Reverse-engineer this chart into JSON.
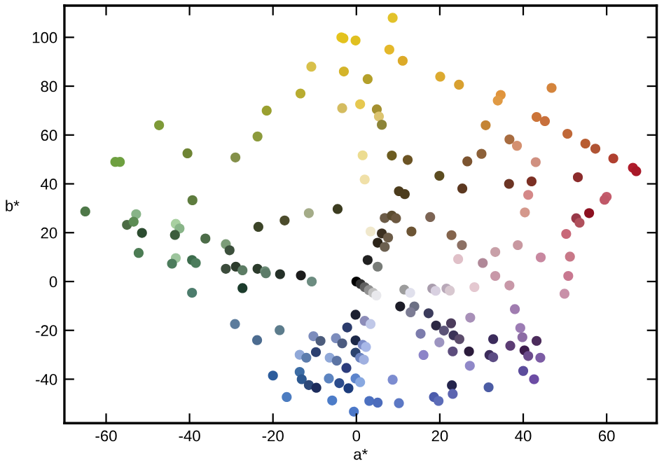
{
  "chart_data": {
    "type": "scatter",
    "xlabel": "a*",
    "ylabel": "b*",
    "xlim": [
      -70,
      72
    ],
    "ylim": [
      -58,
      113
    ],
    "xticks": [
      -60,
      -40,
      -20,
      0,
      20,
      40,
      60
    ],
    "yticks": [
      -40,
      -20,
      0,
      20,
      40,
      60,
      80,
      100
    ],
    "grid": false,
    "legend": false,
    "marker": "circle",
    "series": [
      {
        "x": [
          -3.6,
          -3.1,
          -0.2,
          -10.8,
          -3,
          -13.4,
          -3.4,
          0.9,
          -21.5,
          -47.3,
          -23.7,
          -40.5,
          -29,
          -57.8,
          -56.7,
          1.5,
          2,
          -39.3,
          -65,
          -52.8,
          -11.4,
          -4.5,
          -17.2,
          8.7,
          7.9,
          11.1,
          2.7,
          20.1,
          24.6,
          34.6,
          33.9,
          46.8,
          4.9,
          5.4,
          6.1,
          31,
          43.2,
          45.2,
          50.6,
          54.9,
          57.3,
          36.7,
          38.5,
          61.6,
          66.3,
          67.1,
          8.5,
          12.3,
          26.6,
          30,
          43,
          19.9,
          10.2,
          11.6,
          25.4,
          36.6,
          42,
          53.1,
          41.2,
          60,
          59.5,
          6.8,
          8.5,
          9.5,
          17.7,
          40.4,
          52.7,
          53.5,
          55.8,
          28.3,
          36.7,
          33.3,
          30.3,
          33.3,
          38.7,
          44.2,
          24.4,
          25.3,
          22.8,
          13.2,
          3.4,
          6.1,
          7.6,
          5.1,
          6.8,
          2.7,
          5.1,
          50.3,
          51.2,
          50.8,
          49.9,
          -55,
          -53.4,
          -51.4,
          -52.2,
          -43.3,
          -42.4,
          -43.5,
          -36.2,
          -31.3,
          -30.4,
          -23.5,
          -43.3,
          -44.2,
          -39.4,
          -38.5,
          -39.4,
          -31.3,
          -28.9,
          -27.3,
          -27.3,
          -23.7,
          -21.9,
          -21.7,
          -18.3,
          -13.3,
          -10.7,
          0,
          1,
          2,
          3,
          4,
          4.8,
          -29.1,
          -23.8,
          -18.4,
          -10.3,
          -8.6,
          -4.9,
          -3.4,
          -0.2,
          -2.2,
          -0.2,
          -0.2,
          -9.7,
          -13.6,
          -12,
          -6.4,
          -4.7,
          -2.4,
          -13.6,
          -20,
          -6.6,
          -13.1,
          -11.4,
          -9.6,
          -4.1,
          -1.9,
          -0.2,
          0.9,
          -16.7,
          -5.8,
          -0.6,
          2,
          3.4,
          1.5,
          2.3,
          0.9,
          1.8,
          3.1,
          5.1,
          10.2,
          8.7,
          10.5,
          11.5,
          12.9,
          13.9,
          13,
          15.4,
          16.1,
          17.3,
          18.2,
          19,
          21.6,
          22.4,
          19.1,
          21,
          22.7,
          23.3,
          24.7,
          19.9,
          23.1,
          27,
          27.3,
          27.2,
          22.9,
          23.1,
          18.6,
          19.7,
          31.7,
          31.9,
          32.8,
          32.8,
          36.9,
          38,
          39.3,
          39.8,
          40.3,
          41.2,
          43.2,
          44.1,
          40,
          42.6
        ],
        "values": [
          100,
          99.6,
          98.7,
          88,
          86,
          77,
          71,
          72.6,
          70,
          64,
          59.4,
          52.5,
          50.8,
          49,
          49,
          51.7,
          41.8,
          33.3,
          28.7,
          27.6,
          28,
          29.7,
          25,
          108,
          95,
          90.4,
          82.9,
          83.9,
          80.6,
          76.4,
          74.1,
          79.3,
          70.5,
          67.6,
          64.2,
          64,
          67.4,
          65.7,
          60.5,
          56.5,
          54.4,
          58.2,
          55.6,
          50.4,
          46.6,
          45.2,
          51.6,
          49.8,
          49.2,
          52.3,
          48.9,
          43.3,
          37,
          35.8,
          38.1,
          40,
          41,
          42.7,
          35.5,
          34.7,
          33.5,
          26,
          27,
          25.9,
          26.4,
          28.3,
          25.9,
          24.1,
          28,
          -2.3,
          -1.6,
          2.3,
          7.6,
          12.1,
          14.9,
          9.9,
          9.2,
          14.9,
          19,
          20.5,
          20.5,
          19.7,
          18,
          15.9,
          14.2,
          8.8,
          6.1,
          19.5,
          10.2,
          2.3,
          -5,
          23.2,
          24.5,
          19.9,
          11.7,
          23.6,
          21.7,
          19.1,
          17.6,
          15.3,
          12.8,
          22.4,
          9.6,
          7.3,
          8.8,
          7.6,
          -4.6,
          5.2,
          6.1,
          4.6,
          -2.7,
          5.2,
          4.2,
          3.4,
          3,
          2.5,
          0,
          0,
          -1,
          -2.3,
          -3.5,
          -4.6,
          -5.7,
          -17.4,
          -24,
          -19.9,
          -22.4,
          -24.3,
          -23.2,
          -25.3,
          -13.6,
          -18.8,
          -24.1,
          -29.1,
          -28.9,
          -30,
          -31.2,
          -31.2,
          -32.4,
          -35.4,
          -37,
          -38.5,
          -39.7,
          -40,
          -42.4,
          -43.5,
          -41.6,
          -43.7,
          -39.7,
          -41.2,
          -47.3,
          -48.7,
          -53.3,
          -16.1,
          -17.4,
          -25.9,
          -26.8,
          -31.2,
          -32,
          -48.9,
          -49.6,
          -49.8,
          -40.2,
          -10.2,
          -3.3,
          -4.6,
          -10.2,
          -12.6,
          -21.4,
          -30.1,
          -13,
          -2.9,
          -3.8,
          -2.9,
          -3.7,
          -18,
          -20.1,
          -17.1,
          -22,
          -23.6,
          -24.9,
          -28.6,
          -28.6,
          -14.8,
          -34.5,
          -42.5,
          -46,
          -47.3,
          -48.9,
          -43.3,
          -30.1,
          -31,
          -23.6,
          -26.3,
          -11.3,
          -19,
          -22.8,
          -28.2,
          -30.5,
          -24.3,
          -31.2,
          -36.6,
          -40
        ],
        "colors": [
          "#e6c41c",
          "#e3c21e",
          "#e0c020",
          "#d8c04a",
          "#d4b42a",
          "#b8ac30",
          "#d4bc60",
          "#e6c850",
          "#9aa030",
          "#7e9a38",
          "#8c9a3c",
          "#6e8434",
          "#84904a",
          "#6ea040",
          "#6ea040",
          "#ecdc90",
          "#f0e0a8",
          "#5e7c3e",
          "#4e7848",
          "#88b488",
          "#a4ac88",
          "#3c3c20",
          "#4c4c2c",
          "#e2c22a",
          "#e4b82a",
          "#dcaa28",
          "#b4a02a",
          "#dcaa30",
          "#d8a030",
          "#e0943c",
          "#e09a44",
          "#d4843c",
          "#a49030",
          "#dcc470",
          "#8c8438",
          "#c48434",
          "#cc7438",
          "#c8703c",
          "#c06838",
          "#b85c30",
          "#b05434",
          "#a86c40",
          "#d49070",
          "#b04030",
          "#b01c2c",
          "#a81828",
          "#6c5c20",
          "#6c5424",
          "#7c5430",
          "#8c6038",
          "#d09080",
          "#5c4c20",
          "#4c3c1c",
          "#4c3c1c",
          "#5c3820",
          "#6c3424",
          "#7c3024",
          "#8c2c2c",
          "#d48888",
          "#c45c6c",
          "#c05868",
          "#6c5c48",
          "#5c4c30",
          "#6c5840",
          "#7c6454",
          "#d4988c",
          "#983848",
          "#b0505c",
          "#8c1020",
          "#e4c8d0",
          "#c898a8",
          "#c898a8",
          "#b08898",
          "#c8a0a8",
          "#c898a0",
          "#c888a0",
          "#e0c0c8",
          "#8c7064",
          "#84644c",
          "#6c5434",
          "#f0e8cc",
          "#3c3020",
          "#6c5c48",
          "#2c2418",
          "#6c6050",
          "#202020",
          "#787c78",
          "#c86878",
          "#c87888",
          "#c87890",
          "#c890a8",
          "#4c6c44",
          "#5c8c54",
          "#2c4c30",
          "#4c7c54",
          "#a8d0a0",
          "#88b488",
          "#3c5c3c",
          "#4c6c48",
          "#7c9c78",
          "#3c503c",
          "#3c4428",
          "#9cc49c",
          "#4c7c5c",
          "#3c6c4c",
          "#4c7c5c",
          "#4c7c6c",
          "#3c4c3c",
          "#2c3c2c",
          "#5c7c64",
          "#1c3c2c",
          "#2c3c2c",
          "#6c8c78",
          "#5c7c68",
          "#243028",
          "#1c1c1c",
          "#6c8c80",
          "#000000",
          "#303030",
          "#606060",
          "#909090",
          "#c0c0c0",
          "#e8e8ec",
          "#5c7c9c",
          "#4c6c90",
          "#5c7c8c",
          "#7c8cbc",
          "#4c5c7c",
          "#7c8cbc",
          "#4c5c80",
          "#1c2030",
          "#2c3c6c",
          "#1c2848",
          "#2c4470",
          "#2c4070",
          "#90a8d8",
          "#5c7cac",
          "#90a8d8",
          "#5c74a4",
          "#2c3c7c",
          "#3c6ca4",
          "#2c5c9c",
          "#5c84c0",
          "#2c5890",
          "#2c4878",
          "#1c2c5c",
          "#2c4c8c",
          "#1c3c7c",
          "#5c84cc",
          "#88a8e0",
          "#4c7cc0",
          "#4c7cc8",
          "#4c78c8",
          "#8c8cb8",
          "#c0c8e8",
          "#7c8cc8",
          "#a8b8e8",
          "#6c84c0",
          "#a0b0e0",
          "#4c70c0",
          "#4c6cbc",
          "#5c78c4",
          "#7c8cd0",
          "#1c1c28",
          "#9c9c9c",
          "#e0e0ec",
          "#6c7084",
          "#7c7c94",
          "#7c7cac",
          "#8c84c8",
          "#3c3c5c",
          "#a89cac",
          "#d8d0e0",
          "#b8a8b8",
          "#d8c8d0",
          "#2c2844",
          "#5c5478",
          "#4c3c5c",
          "#3c3458",
          "#5c4c6c",
          "#9c94c0",
          "#5c4c7c",
          "#2c1c3c",
          "#a890b8",
          "#9088c8",
          "#24244c",
          "#5c64b0",
          "#4c5cac",
          "#5c6cb8",
          "#4c5ca4",
          "#3c2c5c",
          "#5c4c84",
          "#3c2c5c",
          "#5c3c74",
          "#a07cb0",
          "#9c7cb4",
          "#8c6ca4",
          "#3c1c4c",
          "#6c4c8c",
          "#4c2c5c",
          "#7c5ca4",
          "#5c4c9c",
          "#6c4ca4"
        ]
      }
    ]
  }
}
